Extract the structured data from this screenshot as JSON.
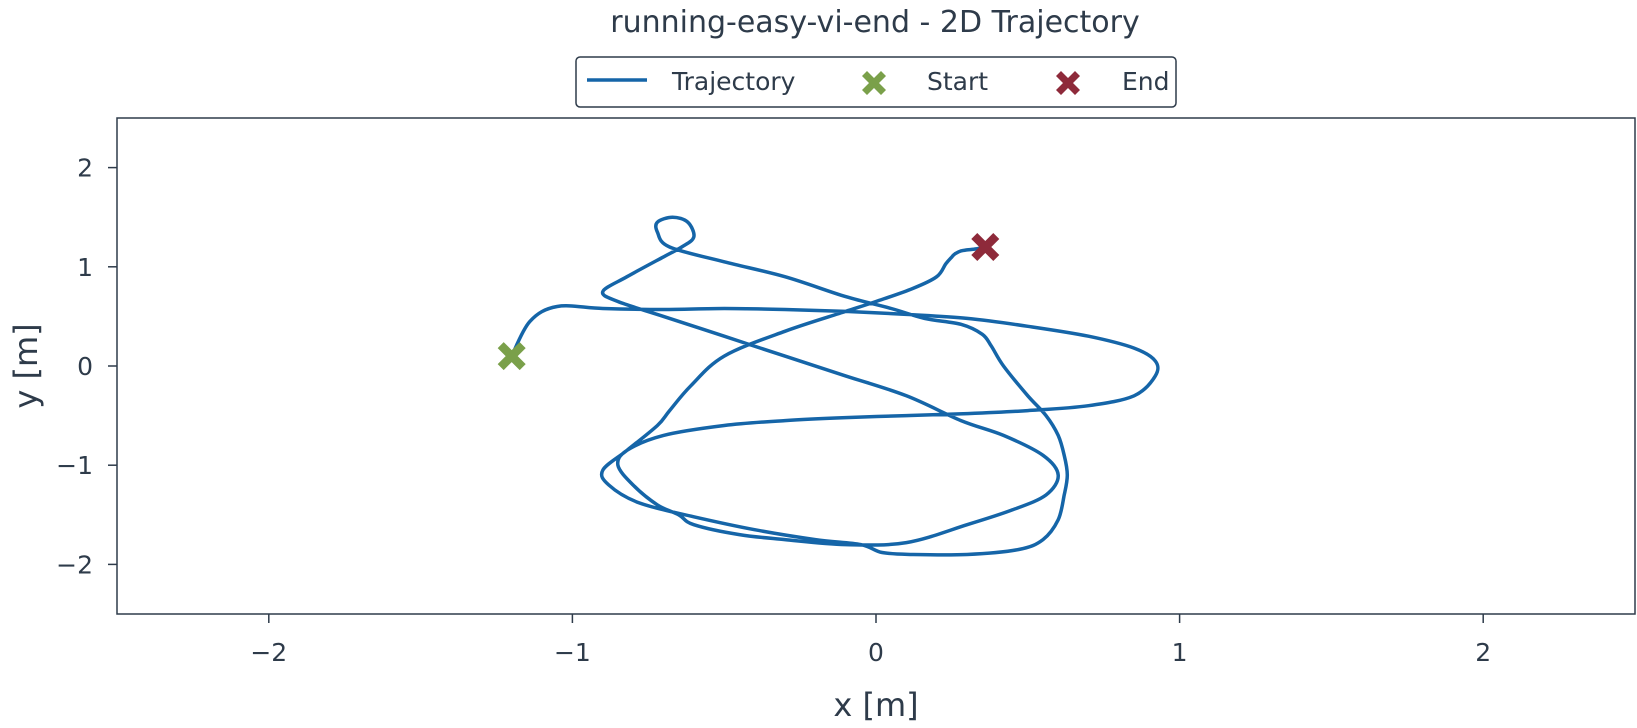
{
  "chart_data": {
    "type": "line",
    "title": "running-easy-vi-end - 2D Trajectory",
    "xlabel": "x [m]",
    "ylabel": "y [m]",
    "xlim": [
      -2.5,
      2.5
    ],
    "ylim": [
      -2.5,
      2.5
    ],
    "xticks": [
      -2,
      -1,
      0,
      1,
      2
    ],
    "yticks": [
      -2,
      -1,
      0,
      1,
      2
    ],
    "xtick_labels": [
      "−2",
      "−1",
      "0",
      "1",
      "2"
    ],
    "ytick_labels": [
      "−2",
      "−1",
      "0",
      "1",
      "2"
    ],
    "grid": false,
    "legend": {
      "placement": "top-center",
      "entries": [
        "Trajectory",
        "Start",
        "End"
      ]
    },
    "colors": {
      "trajectory": "#1565a8",
      "start": "#7aa04a",
      "end": "#8e2a3a",
      "axes": "#2e3b4a"
    },
    "series": [
      {
        "name": "Trajectory",
        "x": [
          -1.2,
          -1.14,
          -1.05,
          -0.9,
          -0.7,
          -0.5,
          -0.3,
          -0.1,
          0.1,
          0.3,
          0.5,
          0.7,
          0.85,
          0.92,
          0.92,
          0.85,
          0.7,
          0.5,
          0.3,
          0.1,
          -0.1,
          -0.3,
          -0.5,
          -0.7,
          -0.82,
          -0.85,
          -0.8,
          -0.72,
          -0.65,
          -0.6,
          -0.45,
          -0.3,
          -0.1,
          0.1,
          0.3,
          0.45,
          0.56,
          0.6,
          0.55,
          0.42,
          0.28,
          0.1,
          -0.1,
          -0.3,
          -0.5,
          -0.7,
          -0.85,
          -0.9,
          -0.82,
          -0.7,
          -0.64,
          -0.6,
          -0.62,
          -0.67,
          -0.72,
          -0.72,
          -0.68,
          -0.5,
          -0.3,
          -0.1,
          0.05,
          0.16,
          0.28,
          0.35,
          0.38,
          0.42,
          0.5,
          0.56,
          0.6,
          0.62,
          0.63,
          0.62,
          0.6,
          0.55,
          0.47,
          0.3,
          0.12,
          0.02,
          -0.05,
          -0.2,
          -0.4,
          -0.6,
          -0.78,
          -0.88,
          -0.9,
          -0.82,
          -0.72,
          -0.68,
          -0.61,
          -0.5,
          -0.3,
          -0.1,
          0.0,
          0.12,
          0.2,
          0.23,
          0.25,
          0.26,
          0.28,
          0.3,
          0.33,
          0.36
        ],
        "y": [
          0.1,
          0.45,
          0.6,
          0.58,
          0.57,
          0.58,
          0.57,
          0.55,
          0.52,
          0.48,
          0.4,
          0.3,
          0.18,
          0.05,
          -0.1,
          -0.3,
          -0.4,
          -0.45,
          -0.48,
          -0.5,
          -0.52,
          -0.55,
          -0.6,
          -0.7,
          -0.85,
          -1.0,
          -1.2,
          -1.4,
          -1.5,
          -1.6,
          -1.7,
          -1.75,
          -1.8,
          -1.78,
          -1.6,
          -1.45,
          -1.3,
          -1.1,
          -0.9,
          -0.7,
          -0.55,
          -0.3,
          -0.1,
          0.1,
          0.3,
          0.5,
          0.65,
          0.75,
          0.9,
          1.1,
          1.2,
          1.3,
          1.45,
          1.5,
          1.45,
          1.35,
          1.2,
          1.05,
          0.9,
          0.7,
          0.58,
          0.48,
          0.42,
          0.32,
          0.2,
          0.0,
          -0.3,
          -0.5,
          -0.7,
          -0.9,
          -1.1,
          -1.3,
          -1.55,
          -1.75,
          -1.85,
          -1.9,
          -1.9,
          -1.88,
          -1.8,
          -1.75,
          -1.65,
          -1.52,
          -1.38,
          -1.2,
          -1.05,
          -0.85,
          -0.6,
          -0.45,
          -0.2,
          0.1,
          0.35,
          0.55,
          0.65,
          0.78,
          0.9,
          1.03,
          1.1,
          1.13,
          1.16,
          1.17,
          1.18,
          1.2
        ]
      }
    ],
    "markers": {
      "start": {
        "name": "Start",
        "x": -1.2,
        "y": 0.1
      },
      "end": {
        "name": "End",
        "x": 0.36,
        "y": 1.2
      }
    }
  }
}
